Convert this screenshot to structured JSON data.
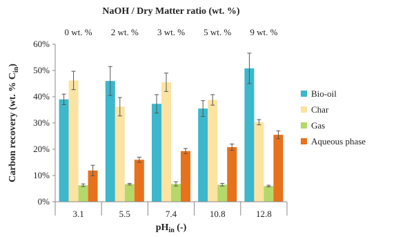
{
  "chart_data": {
    "type": "bar",
    "title": "",
    "top_axis": {
      "title": "NaOH / Dry Matter ratio (wt. %)",
      "labels": [
        "0 wt. %",
        "2 wt. %",
        "3 wt. %",
        "5 wt. %",
        "9 wt. %"
      ]
    },
    "categories": [
      "3.1",
      "5.5",
      "7.4",
      "10.8",
      "12.8"
    ],
    "xlabel": {
      "main": "pH",
      "sub": "in",
      "suffix": " (-)"
    },
    "ylabel": {
      "main": "Carbon recovery (wt. % C",
      "sub": "in",
      "suffix": ")"
    },
    "ylim": [
      0,
      60
    ],
    "yticks": [
      0,
      10,
      20,
      30,
      40,
      50,
      60
    ],
    "ytick_format": "{v}%",
    "grid": false,
    "legend_position": "right",
    "series": [
      {
        "name": "Bio-oil",
        "color": "#3cb7cc",
        "values": [
          39,
          46,
          37.3,
          35.5,
          50.8
        ],
        "errors": [
          2.0,
          5.5,
          3.5,
          3.0,
          5.8
        ]
      },
      {
        "name": "Char",
        "color": "#fbe3a1",
        "values": [
          46.2,
          36.2,
          45.5,
          38.8,
          30.3
        ],
        "errors": [
          3.5,
          3.5,
          3.5,
          2.0,
          1.0
        ]
      },
      {
        "name": "Gas",
        "color": "#b5d86a",
        "values": [
          6.3,
          6.7,
          6.8,
          6.5,
          6.0
        ],
        "errors": [
          0.5,
          0.3,
          0.8,
          0.5,
          0.3
        ]
      },
      {
        "name": "Aqueous phase",
        "color": "#e8711c",
        "values": [
          11.9,
          16.0,
          19.3,
          20.8,
          25.5
        ],
        "errors": [
          2.0,
          1.0,
          1.0,
          1.2,
          1.5
        ]
      }
    ]
  }
}
